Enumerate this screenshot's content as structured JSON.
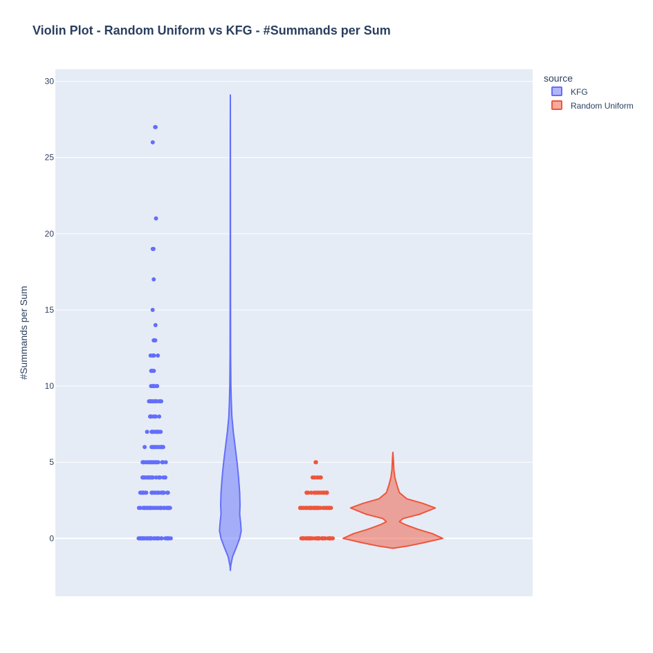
{
  "colors": {
    "plot_bg": "#e5ecf6",
    "grid": "#ffffff",
    "text": "#2a3f5f",
    "kfg": "#636efa",
    "random_uniform": "#ef553b"
  },
  "chart_data": {
    "type": "violin",
    "title": "Violin Plot - Random Uniform vs KFG - #Summands per Sum",
    "xlabel": "",
    "ylabel": "#Summands per Sum",
    "ylim": [
      -3.8,
      30.8
    ],
    "yticks": [
      0,
      5,
      10,
      15,
      20,
      25,
      30
    ],
    "grid": true,
    "legend": {
      "title": "source",
      "placement": "top-right",
      "items": [
        "KFG",
        "Random Uniform"
      ]
    },
    "series": [
      {
        "name": "KFG",
        "color": "#636efa",
        "points": [
          {
            "y": 0,
            "count": 40
          },
          {
            "y": 2,
            "count": 34
          },
          {
            "y": 3,
            "count": 26
          },
          {
            "y": 4,
            "count": 22
          },
          {
            "y": 5,
            "count": 22
          },
          {
            "y": 6,
            "count": 18
          },
          {
            "y": 7,
            "count": 12
          },
          {
            "y": 8,
            "count": 8
          },
          {
            "y": 9,
            "count": 12
          },
          {
            "y": 10,
            "count": 6
          },
          {
            "y": 11,
            "count": 4
          },
          {
            "y": 12,
            "count": 5
          },
          {
            "y": 13,
            "count": 3
          },
          {
            "y": 14,
            "count": 1
          },
          {
            "y": 15,
            "count": 1
          },
          {
            "y": 17,
            "count": 1
          },
          {
            "y": 19,
            "count": 2
          },
          {
            "y": 21,
            "count": 1
          },
          {
            "y": 26,
            "count": 1
          },
          {
            "y": 27,
            "count": 2
          }
        ],
        "violin_range": [
          -2.1,
          29.1
        ],
        "density": [
          [
            -2.1,
            0.0
          ],
          [
            -1.8,
            0.02
          ],
          [
            -1.2,
            0.12
          ],
          [
            -0.6,
            0.32
          ],
          [
            0.0,
            0.5
          ],
          [
            0.5,
            0.58
          ],
          [
            1.0,
            0.55
          ],
          [
            1.6,
            0.5
          ],
          [
            2.2,
            0.52
          ],
          [
            3.0,
            0.5
          ],
          [
            4.0,
            0.44
          ],
          [
            5.0,
            0.36
          ],
          [
            6.0,
            0.26
          ],
          [
            7.0,
            0.16
          ],
          [
            8.0,
            0.08
          ],
          [
            9.0,
            0.05
          ],
          [
            10.0,
            0.03
          ],
          [
            12.0,
            0.015
          ],
          [
            15.0,
            0.01
          ],
          [
            20.0,
            0.007
          ],
          [
            27.0,
            0.005
          ],
          [
            29.1,
            0.0
          ]
        ]
      },
      {
        "name": "Random Uniform",
        "color": "#ef553b",
        "points": [
          {
            "y": 0,
            "count": 40
          },
          {
            "y": 2,
            "count": 40
          },
          {
            "y": 3,
            "count": 20
          },
          {
            "y": 4,
            "count": 6
          },
          {
            "y": 5,
            "count": 2
          }
        ],
        "violin_range": [
          -0.65,
          5.65
        ],
        "density": [
          [
            -0.65,
            0.0
          ],
          [
            -0.5,
            0.3
          ],
          [
            -0.3,
            0.6
          ],
          [
            0.0,
            1.0
          ],
          [
            0.3,
            0.8
          ],
          [
            0.6,
            0.5
          ],
          [
            0.9,
            0.25
          ],
          [
            1.1,
            0.13
          ],
          [
            1.3,
            0.2
          ],
          [
            1.6,
            0.55
          ],
          [
            2.0,
            0.85
          ],
          [
            2.3,
            0.6
          ],
          [
            2.6,
            0.28
          ],
          [
            3.0,
            0.13
          ],
          [
            3.5,
            0.08
          ],
          [
            4.0,
            0.04
          ],
          [
            4.5,
            0.02
          ],
          [
            5.0,
            0.012
          ],
          [
            5.4,
            0.006
          ],
          [
            5.65,
            0.0
          ]
        ]
      }
    ]
  }
}
